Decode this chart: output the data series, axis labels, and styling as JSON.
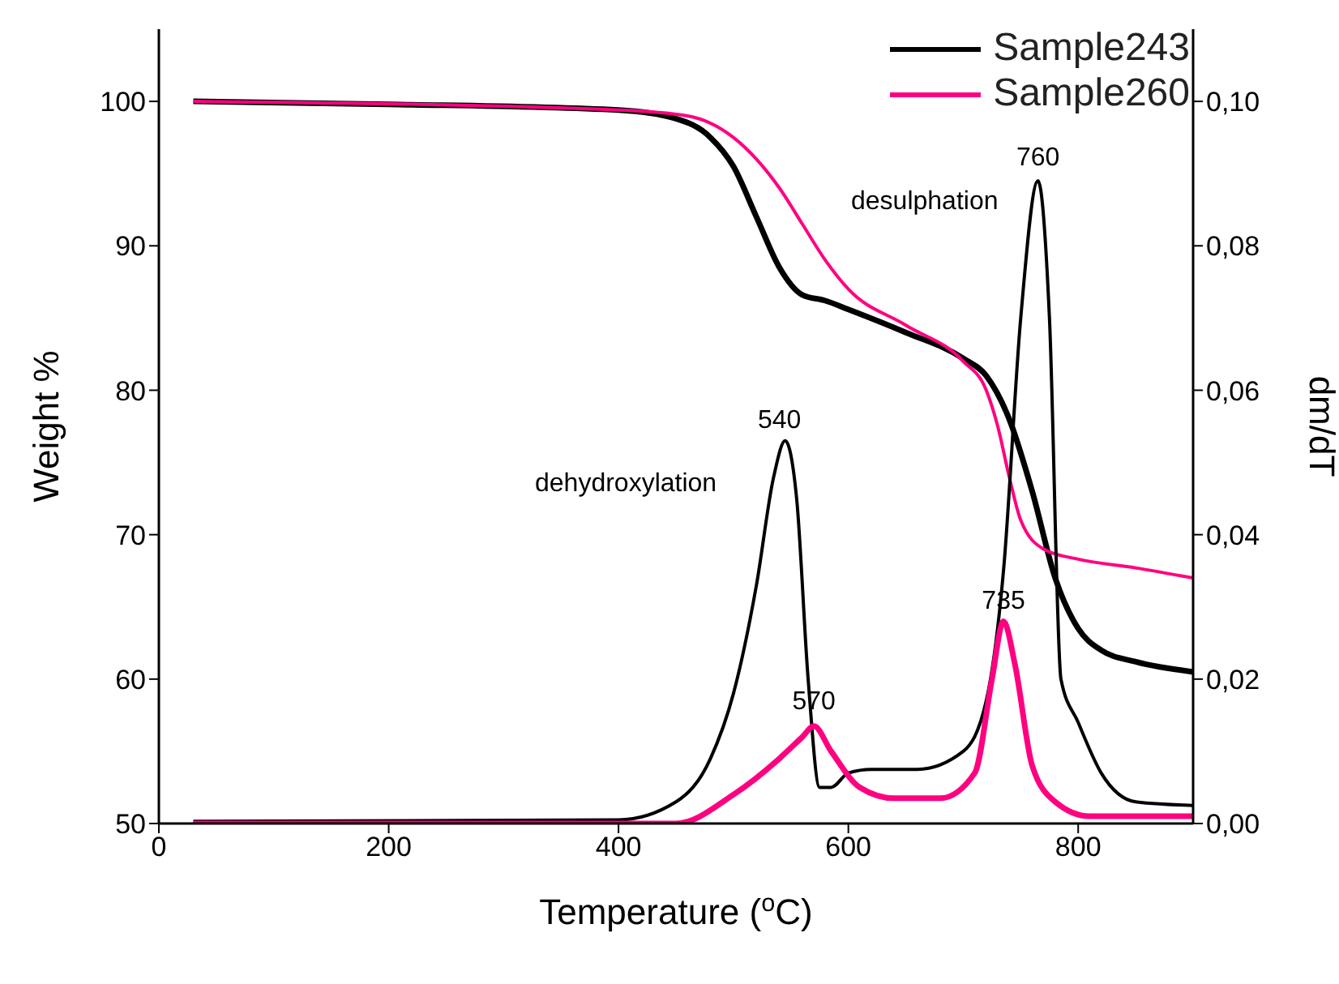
{
  "chart_data": {
    "type": "line",
    "xlabel": "Temperature ($^{o}$C)",
    "ylabel": "Weight %",
    "y2label": "dm/dT",
    "xlim": [
      0,
      900
    ],
    "xticks": [
      0,
      200,
      400,
      600,
      800
    ],
    "ylim": [
      50,
      105
    ],
    "yticks": [
      50,
      60,
      70,
      80,
      90,
      100
    ],
    "y2lim": [
      0,
      0.11
    ],
    "y2ticks": [
      {
        "value": 0,
        "label": "0,00"
      },
      {
        "value": 0.02,
        "label": "0,02"
      },
      {
        "value": 0.04,
        "label": "0,04"
      },
      {
        "value": 0.06,
        "label": "0,06"
      },
      {
        "value": 0.08,
        "label": "0,08"
      },
      {
        "value": 0.1,
        "label": "0,10"
      }
    ],
    "legend": "top right",
    "grid": false,
    "marker": "none",
    "line_style": "solid",
    "series": [
      {
        "name": "Sample243",
        "color": "#000000",
        "x": [
          30,
          200,
          400,
          450,
          480,
          500,
          520,
          540,
          560,
          580,
          600,
          650,
          700,
          720,
          740,
          760,
          780,
          800,
          820,
          850,
          900
        ],
        "values": [
          100,
          99.8,
          99.4,
          98.8,
          97.5,
          95.5,
          92,
          88.5,
          86.6,
          86.2,
          85.6,
          84,
          82.2,
          81,
          78,
          73,
          67,
          63.5,
          62,
          61.2,
          60.5
        ]
      },
      {
        "name": "Sample260",
        "color": "#ff0080",
        "x": [
          30,
          400,
          460,
          500,
          540,
          560,
          580,
          600,
          650,
          700,
          720,
          730,
          740,
          750,
          770,
          800,
          850,
          900
        ],
        "values": [
          100,
          99.4,
          99,
          97.5,
          94,
          91.5,
          89,
          87,
          84.5,
          82,
          80,
          77.5,
          74,
          71,
          69,
          68.3,
          67.7,
          67
        ]
      },
      {
        "color": "#000000",
        "axis": "y2",
        "x": [
          30,
          400,
          450,
          480,
          500,
          520,
          535,
          545,
          555,
          565,
          575,
          585,
          600,
          620,
          660,
          700,
          720,
          735,
          750,
          765,
          775,
          785,
          800,
          820,
          850,
          900
        ],
        "values": [
          0.0003,
          0.0005,
          0.003,
          0.009,
          0.018,
          0.033,
          0.048,
          0.053,
          0.045,
          0.02,
          0.005,
          0.005,
          0.007,
          0.0075,
          0.0075,
          0.01,
          0.017,
          0.035,
          0.07,
          0.089,
          0.07,
          0.02,
          0.014,
          0.007,
          0.003,
          0.0025
        ]
      },
      {
        "color": "#ff0080",
        "axis": "y2",
        "x": [
          30,
          450,
          500,
          540,
          560,
          570,
          585,
          610,
          640,
          680,
          710,
          725,
          735,
          745,
          760,
          780,
          810,
          900
        ],
        "values": [
          0,
          0,
          0.004,
          0.009,
          0.012,
          0.0135,
          0.01,
          0.005,
          0.0035,
          0.0035,
          0.007,
          0.02,
          0.028,
          0.022,
          0.008,
          0.003,
          0.001,
          0.001
        ]
      }
    ],
    "annotations": [
      {
        "text": "540",
        "x": 540,
        "y": 76.5
      },
      "dehydroxylation",
      {
        "text": "570",
        "x": 570,
        "y": 57
      },
      {
        "text": "735",
        "x": 735,
        "y": 64
      },
      {
        "text": "760",
        "x": 765,
        "y": 94.7
      },
      "desulphation"
    ]
  }
}
